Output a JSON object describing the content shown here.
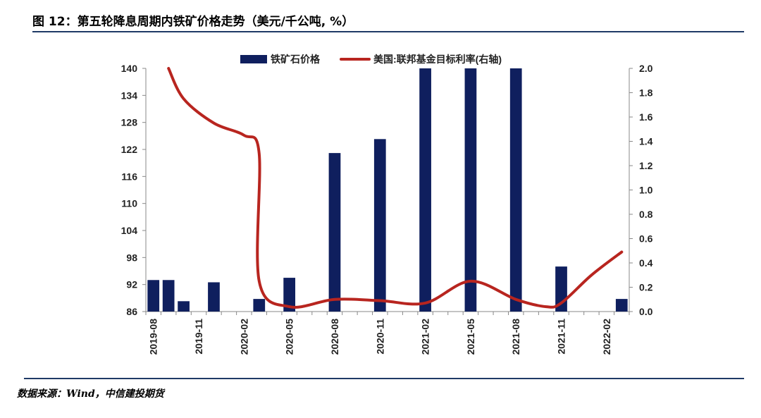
{
  "header": {
    "title": "图 12：第五轮降息周期内铁矿价格走势（美元/千公吨, %）",
    "source": "数据来源：Wind，中信建投期货"
  },
  "chart_data": {
    "type": "bar",
    "x_range": [
      "2019-08",
      "2022-03"
    ],
    "x_tick_labels": [
      "2019-08",
      "2019-11",
      "2020-02",
      "2020-05",
      "2020-08",
      "2020-11",
      "2021-02",
      "2021-05",
      "2021-08",
      "2021-11",
      "2022-02"
    ],
    "left_axis": {
      "min": 86,
      "max": 140,
      "ticks": [
        140,
        134,
        128,
        122,
        116,
        110,
        104,
        98,
        92,
        86
      ]
    },
    "right_axis": {
      "min": 0,
      "max": 2,
      "ticks": [
        "2.0",
        "1.8",
        "1.6",
        "1.4",
        "1.2",
        "1.0",
        "0.8",
        "0.6",
        "0.4",
        "0.2",
        "0.0"
      ]
    },
    "legend": {
      "position": "top",
      "bar_label": "铁矿石价格",
      "line_label": "美国:联邦基金目标利率(右轴)"
    },
    "bar_series": {
      "name": "铁矿石价格",
      "color": "#0f1f5e",
      "axis": "left",
      "points": [
        {
          "x": "2019-08",
          "y": 93.0
        },
        {
          "x": "2019-09",
          "y": 93.0
        },
        {
          "x": "2019-10",
          "y": 88.3
        },
        {
          "x": "2019-12",
          "y": 92.5
        },
        {
          "x": "2020-03",
          "y": 88.8
        },
        {
          "x": "2020-05",
          "y": 93.5
        },
        {
          "x": "2020-08",
          "y": 121.2
        },
        {
          "x": "2020-11",
          "y": 124.3
        },
        {
          "x": "2021-02",
          "y": 140
        },
        {
          "x": "2021-05",
          "y": 140
        },
        {
          "x": "2021-08",
          "y": 140
        },
        {
          "x": "2021-11",
          "y": 96.0
        },
        {
          "x": "2022-03",
          "y": 88.8
        }
      ]
    },
    "line_series": {
      "name": "美国:联邦基金目标利率(右轴)",
      "color": "#b8251f",
      "axis": "right",
      "points": [
        {
          "x": "2019-09",
          "y": 2.0
        },
        {
          "x": "2019-10",
          "y": 1.75
        },
        {
          "x": "2019-12",
          "y": 1.55
        },
        {
          "x": "2020-02",
          "y": 1.45
        },
        {
          "x": "2020-03",
          "y": 1.3
        },
        {
          "x": "2020-03",
          "y": 0.25
        },
        {
          "x": "2020-05",
          "y": 0.04
        },
        {
          "x": "2020-08",
          "y": 0.1
        },
        {
          "x": "2020-11",
          "y": 0.09
        },
        {
          "x": "2021-02",
          "y": 0.07
        },
        {
          "x": "2021-05",
          "y": 0.25
        },
        {
          "x": "2021-08",
          "y": 0.1
        },
        {
          "x": "2021-10",
          "y": 0.04
        },
        {
          "x": "2021-11",
          "y": 0.07
        },
        {
          "x": "2022-01",
          "y": 0.3
        },
        {
          "x": "2022-03",
          "y": 0.49
        }
      ]
    }
  }
}
